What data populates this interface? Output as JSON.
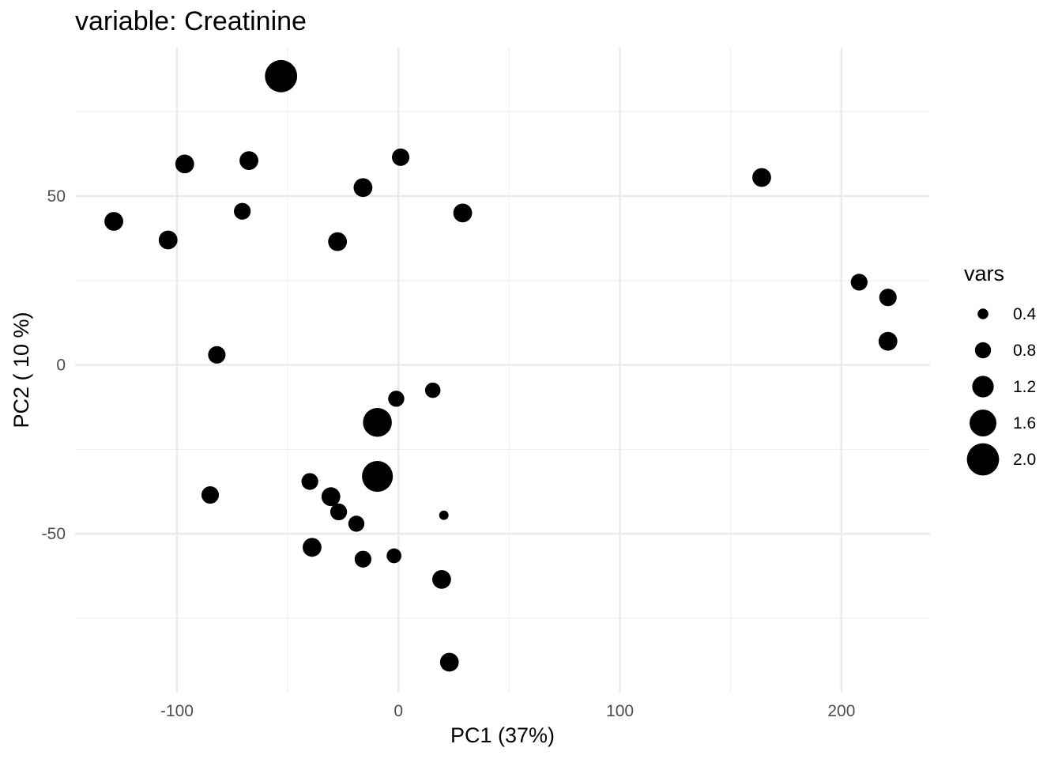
{
  "chart_data": {
    "type": "scatter",
    "title": "variable: Creatinine",
    "xlabel": "PC1 (37%)",
    "ylabel": "PC2 ( 10 %)",
    "xlim": [
      -146,
      240
    ],
    "ylim": [
      -97,
      94
    ],
    "x_ticks": [
      -100,
      0,
      100,
      200
    ],
    "x_tick_labels": [
      "-100",
      "0",
      "100",
      "200"
    ],
    "y_ticks": [
      -50,
      0,
      50
    ],
    "y_tick_labels": [
      "-50",
      "0",
      "50"
    ],
    "grid": true,
    "point_color": "#000000",
    "legend": {
      "title": "vars",
      "position": "right",
      "entries": [
        {
          "label": "0.4",
          "value": 0.4
        },
        {
          "label": "0.8",
          "value": 0.8
        },
        {
          "label": "1.2",
          "value": 1.2
        },
        {
          "label": "1.6",
          "value": 1.6
        },
        {
          "label": "2.0",
          "value": 2.0
        }
      ]
    },
    "points": [
      {
        "x": -53,
        "y": 85.5,
        "size": 2.0
      },
      {
        "x": -96.5,
        "y": 59.5,
        "size": 1.0
      },
      {
        "x": -67.5,
        "y": 60.5,
        "size": 1.0
      },
      {
        "x": 1,
        "y": 61.5,
        "size": 0.9
      },
      {
        "x": -16,
        "y": 52.5,
        "size": 1.0
      },
      {
        "x": -128.5,
        "y": 42.5,
        "size": 1.0
      },
      {
        "x": -104,
        "y": 37,
        "size": 1.0
      },
      {
        "x": -70.5,
        "y": 45.5,
        "size": 0.85
      },
      {
        "x": -27.5,
        "y": 36.5,
        "size": 1.0
      },
      {
        "x": 29,
        "y": 45,
        "size": 1.0
      },
      {
        "x": 164,
        "y": 55.5,
        "size": 1.0
      },
      {
        "x": 208,
        "y": 24.5,
        "size": 0.85
      },
      {
        "x": 221,
        "y": 20,
        "size": 0.9
      },
      {
        "x": 221,
        "y": 7,
        "size": 1.0
      },
      {
        "x": -82,
        "y": 3,
        "size": 0.9
      },
      {
        "x": 15.5,
        "y": -7.5,
        "size": 0.75
      },
      {
        "x": -1,
        "y": -10,
        "size": 0.8
      },
      {
        "x": -9.5,
        "y": -17,
        "size": 1.75
      },
      {
        "x": -9.5,
        "y": -33,
        "size": 1.9
      },
      {
        "x": -40,
        "y": -34.5,
        "size": 0.85
      },
      {
        "x": -85,
        "y": -38.5,
        "size": 0.9
      },
      {
        "x": -30.5,
        "y": -39,
        "size": 1.0
      },
      {
        "x": -27,
        "y": -43.5,
        "size": 0.85
      },
      {
        "x": -19,
        "y": -47,
        "size": 0.8
      },
      {
        "x": 20.5,
        "y": -44.5,
        "size": 0.3
      },
      {
        "x": -39,
        "y": -54,
        "size": 1.0
      },
      {
        "x": -16,
        "y": -57.5,
        "size": 0.85
      },
      {
        "x": -2,
        "y": -56.5,
        "size": 0.7
      },
      {
        "x": 19.5,
        "y": -63.5,
        "size": 1.0
      },
      {
        "x": 23,
        "y": -88,
        "size": 1.0
      }
    ]
  }
}
